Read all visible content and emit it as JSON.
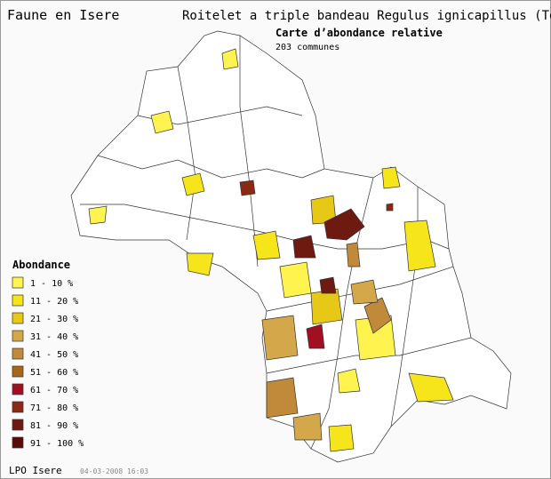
{
  "header": {
    "site": "Faune en Isere",
    "species": "Roitelet a triple bandeau  Regulus ignicapillus (Tem",
    "map_title": "Carte d’abondance relative",
    "count": "203 communes"
  },
  "legend": {
    "title": "Abondance",
    "items": [
      {
        "label": "1 - 10 %",
        "color": "#fff44f"
      },
      {
        "label": "11 - 20 %",
        "color": "#f5e51a"
      },
      {
        "label": "21 - 30 %",
        "color": "#e8c816"
      },
      {
        "label": "31 - 40 %",
        "color": "#d4a84a"
      },
      {
        "label": "41 - 50 %",
        "color": "#c08a3a"
      },
      {
        "label": "51 - 60 %",
        "color": "#a8661a"
      },
      {
        "label": "61 - 70 %",
        "color": "#a01020"
      },
      {
        "label": "71 - 80 %",
        "color": "#8a2a14"
      },
      {
        "label": "81 - 90 %",
        "color": "#6e1a10"
      },
      {
        "label": "91 - 100 %",
        "color": "#5a0a08"
      }
    ]
  },
  "footer": {
    "source": "LPO Isere",
    "date": "04-03-2008 16:03"
  }
}
